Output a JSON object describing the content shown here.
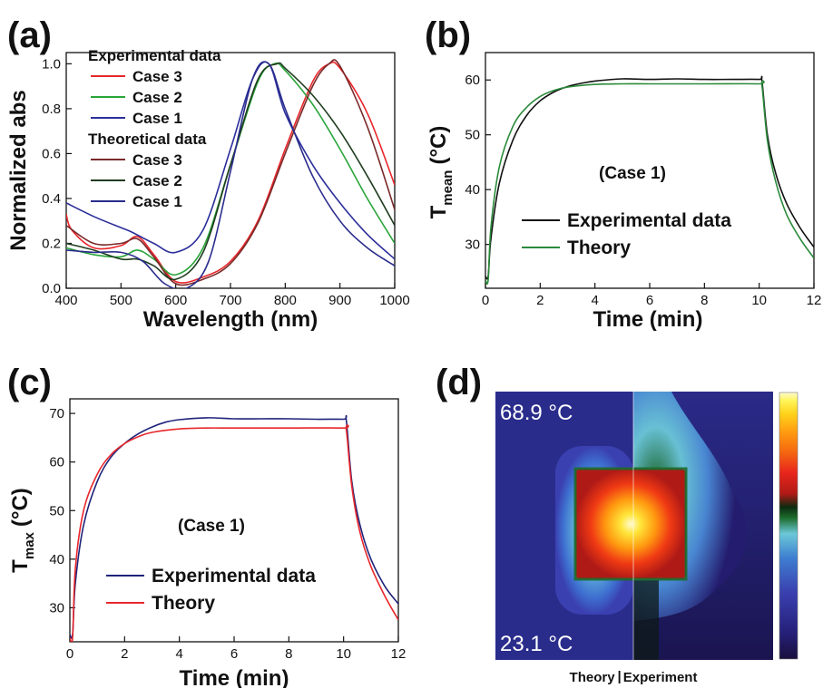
{
  "figure": {
    "panels": [
      {
        "label": "(a)"
      },
      {
        "label": "(b)"
      },
      {
        "label": "(c)"
      },
      {
        "label": "(d)"
      }
    ]
  },
  "chart_data": [
    {
      "panel": "(a)",
      "type": "line",
      "xlabel": "Wavelength (nm)",
      "ylabel": "Normalized abs",
      "xlim": [
        400,
        1000
      ],
      "ylim": [
        0,
        1.05
      ],
      "xticks": [
        400,
        500,
        600,
        700,
        800,
        900,
        1000
      ],
      "yticks": [
        0.0,
        0.2,
        0.4,
        0.6,
        0.8,
        1.0
      ],
      "legend_groups": [
        "Experimental data",
        "Theoretical data"
      ],
      "legend_position": "top-left",
      "series": [
        {
          "name": "Case 3",
          "group": "Experimental data",
          "color": "#e8262b",
          "x": [
            400,
            410,
            450,
            500,
            530,
            560,
            600,
            650,
            700,
            750,
            800,
            850,
            880,
            900,
            950,
            1000
          ],
          "y": [
            0.33,
            0.26,
            0.18,
            0.19,
            0.23,
            0.15,
            0.03,
            0.05,
            0.12,
            0.3,
            0.62,
            0.92,
            1.0,
            0.98,
            0.78,
            0.46
          ]
        },
        {
          "name": "Case 2",
          "group": "Experimental data",
          "color": "#2aa53a",
          "x": [
            400,
            450,
            500,
            530,
            560,
            600,
            650,
            700,
            750,
            780,
            800,
            850,
            900,
            950,
            1000
          ],
          "y": [
            0.18,
            0.15,
            0.14,
            0.17,
            0.13,
            0.06,
            0.18,
            0.55,
            0.92,
            1.0,
            0.97,
            0.82,
            0.62,
            0.4,
            0.2
          ]
        },
        {
          "name": "Case 1",
          "group": "Experimental data",
          "color": "#2b2e9a",
          "x": [
            400,
            450,
            500,
            520,
            560,
            600,
            650,
            700,
            740,
            770,
            800,
            850,
            900,
            950,
            1000
          ],
          "y": [
            0.38,
            0.32,
            0.27,
            0.25,
            0.2,
            0.16,
            0.26,
            0.62,
            0.93,
            1.0,
            0.78,
            0.55,
            0.38,
            0.24,
            0.13
          ]
        },
        {
          "name": "Case 3",
          "group": "Theoretical data",
          "color": "#7a2a2a",
          "x": [
            400,
            450,
            500,
            530,
            560,
            600,
            650,
            700,
            750,
            800,
            850,
            880,
            900,
            950,
            1000
          ],
          "y": [
            0.28,
            0.2,
            0.2,
            0.22,
            0.14,
            0.02,
            0.04,
            0.11,
            0.29,
            0.6,
            0.9,
            1.0,
            0.99,
            0.72,
            0.35
          ]
        },
        {
          "name": "Case 2",
          "group": "Theoretical data",
          "color": "#1f3d1f",
          "x": [
            400,
            450,
            500,
            530,
            560,
            600,
            650,
            700,
            750,
            785,
            800,
            850,
            900,
            950,
            1000
          ],
          "y": [
            0.2,
            0.17,
            0.13,
            0.13,
            0.1,
            0.04,
            0.16,
            0.55,
            0.93,
            1.0,
            0.98,
            0.86,
            0.7,
            0.5,
            0.28
          ]
        },
        {
          "name": "Case 1",
          "group": "Theoretical data",
          "color": "#2a2c8c",
          "x": [
            400,
            450,
            500,
            540,
            580,
            620,
            660,
            700,
            740,
            770,
            800,
            850,
            900,
            950,
            1000
          ],
          "y": [
            0.17,
            0.16,
            0.16,
            0.12,
            0.02,
            0.0,
            0.12,
            0.52,
            0.93,
            1.0,
            0.8,
            0.5,
            0.3,
            0.18,
            0.1
          ]
        }
      ]
    },
    {
      "panel": "(b)",
      "type": "line",
      "xlabel": "Time (min)",
      "ylabel_main": "T",
      "ylabel_sub": "mean",
      "ylabel_unit": "(°C)",
      "xlim": [
        0,
        12
      ],
      "ylim": [
        22,
        65
      ],
      "xticks": [
        0,
        2,
        4,
        6,
        8,
        10,
        12
      ],
      "yticks": [
        30,
        40,
        50,
        60
      ],
      "annotation": "(Case 1)",
      "legend_position": "lower-center",
      "series": [
        {
          "name": "Experimental data",
          "color": "#111111",
          "x": [
            0,
            0.1,
            0.2,
            0.5,
            1,
            1.5,
            2,
            2.5,
            3,
            3.5,
            4,
            5,
            6,
            7,
            8,
            9,
            10,
            10.1,
            10.3,
            10.6,
            11,
            11.5,
            12
          ],
          "y": [
            24.2,
            24.2,
            31,
            41,
            49,
            53.5,
            56.2,
            57.8,
            58.8,
            59.4,
            59.8,
            60.2,
            60.1,
            60.2,
            60.1,
            60.1,
            60.1,
            59.8,
            50,
            43,
            37.5,
            33,
            29.5
          ]
        },
        {
          "name": "Theory",
          "color": "#2a8a3a",
          "x": [
            0,
            0.1,
            0.2,
            0.5,
            1,
            1.5,
            2,
            2.5,
            3,
            4,
            5,
            6,
            8,
            10,
            10.1,
            10.3,
            10.6,
            11,
            11.5,
            12
          ],
          "y": [
            23.5,
            23.5,
            33,
            44,
            51.5,
            55,
            57,
            58.1,
            58.7,
            59.2,
            59.3,
            59.3,
            59.3,
            59.3,
            59,
            49,
            41.5,
            35.5,
            31,
            27.5
          ]
        }
      ]
    },
    {
      "panel": "(c)",
      "type": "line",
      "xlabel": "Time (min)",
      "ylabel_main": "T",
      "ylabel_sub": "max",
      "ylabel_unit": "(°C)",
      "xlim": [
        0,
        12
      ],
      "ylim": [
        23,
        73
      ],
      "xticks": [
        0,
        2,
        4,
        6,
        8,
        10,
        12
      ],
      "yticks": [
        30,
        40,
        50,
        60,
        70
      ],
      "annotation": "(Case 1)",
      "legend_position": "lower-center",
      "series": [
        {
          "name": "Experimental data",
          "color": "#1f237a",
          "x": [
            0,
            0.1,
            0.2,
            0.5,
            1,
            1.5,
            2,
            2.5,
            3,
            3.5,
            4,
            5,
            6,
            7,
            8,
            9,
            10,
            10.1,
            10.3,
            10.6,
            11,
            11.5,
            12
          ],
          "y": [
            24.5,
            24.5,
            35,
            47,
            56,
            61,
            63.8,
            65.8,
            67.2,
            68.2,
            68.7,
            69.1,
            68.9,
            68.9,
            68.9,
            68.8,
            68.8,
            68.5,
            56,
            47,
            40,
            34.5,
            30.8
          ]
        },
        {
          "name": "Theory",
          "color": "#e8262b",
          "x": [
            0,
            0.1,
            0.2,
            0.5,
            1,
            1.5,
            2,
            2.5,
            3,
            4,
            5,
            6,
            8,
            10,
            10.1,
            10.3,
            10.6,
            11,
            11.5,
            12
          ],
          "y": [
            23.8,
            23.8,
            38,
            50,
            57.5,
            61.5,
            63.8,
            65.2,
            66.1,
            66.8,
            67,
            67,
            67,
            67,
            66.6,
            55,
            45.5,
            38.5,
            32.5,
            27.5
          ]
        }
      ]
    },
    {
      "panel": "(d)",
      "type": "heatmap",
      "max_label": "68.9 °C",
      "min_label": "23.1 °C",
      "left_label": "Theory",
      "separator": "|",
      "right_label": "Experiment",
      "colormap": [
        "#1a0f3c",
        "#26207a",
        "#3a40b0",
        "#3e7fd0",
        "#6bc8d8",
        "#1c6b2c",
        "#0c2a10",
        "#b01a16",
        "#e8261c",
        "#f56a10",
        "#ff9a10",
        "#ffd21a",
        "#fff55a",
        "#fffbd0"
      ]
    }
  ]
}
